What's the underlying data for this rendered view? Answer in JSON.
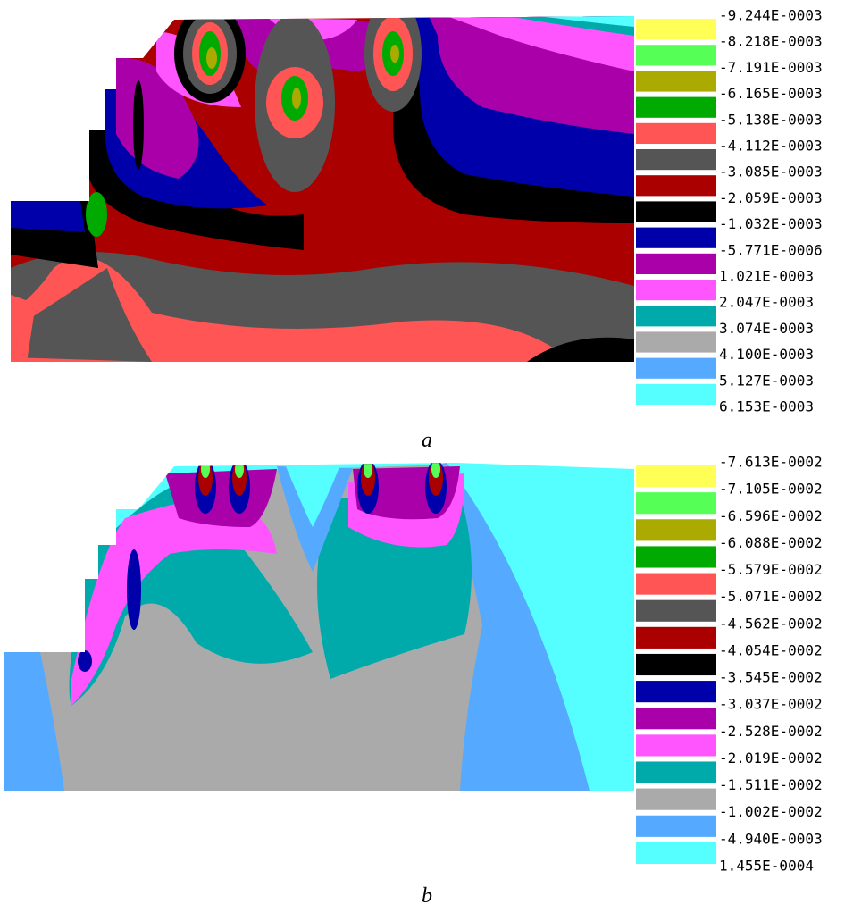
{
  "panels": [
    {
      "caption": "a",
      "legend": [
        "-9.244E-0003",
        "-8.218E-0003",
        "-7.191E-0003",
        "-6.165E-0003",
        "-5.138E-0003",
        "-4.112E-0003",
        "-3.085E-0003",
        "-2.059E-0003",
        "-1.032E-0003",
        "-5.771E-0006",
        "1.021E-0003",
        "2.047E-0003",
        "3.074E-0003",
        "4.100E-0003",
        "5.127E-0003",
        "6.153E-0003"
      ],
      "colors": [
        "#ffff55",
        "#55ff55",
        "#aaaa00",
        "#00aa00",
        "#ff5555",
        "#555555",
        "#aa0000",
        "#000000",
        "#0000aa",
        "#aa00aa",
        "#ff55ff",
        "#00aaaa",
        "#aaaaaa",
        "#55aaff",
        "#55ffff"
      ]
    },
    {
      "caption": "b",
      "legend": [
        "-7.613E-0002",
        "-7.105E-0002",
        "-6.596E-0002",
        "-6.088E-0002",
        "-5.579E-0002",
        "-5.071E-0002",
        "-4.562E-0002",
        "-4.054E-0002",
        "-3.545E-0002",
        "-3.037E-0002",
        "-2.528E-0002",
        "-2.019E-0002",
        "-1.511E-0002",
        "-1.002E-0002",
        "-4.940E-0003",
        "1.455E-0004"
      ],
      "colors": [
        "#ffff55",
        "#55ff55",
        "#aaaa00",
        "#00aa00",
        "#ff5555",
        "#555555",
        "#aa0000",
        "#000000",
        "#0000aa",
        "#aa00aa",
        "#ff55ff",
        "#00aaaa",
        "#aaaaaa",
        "#55aaff",
        "#55ffff"
      ]
    }
  ]
}
